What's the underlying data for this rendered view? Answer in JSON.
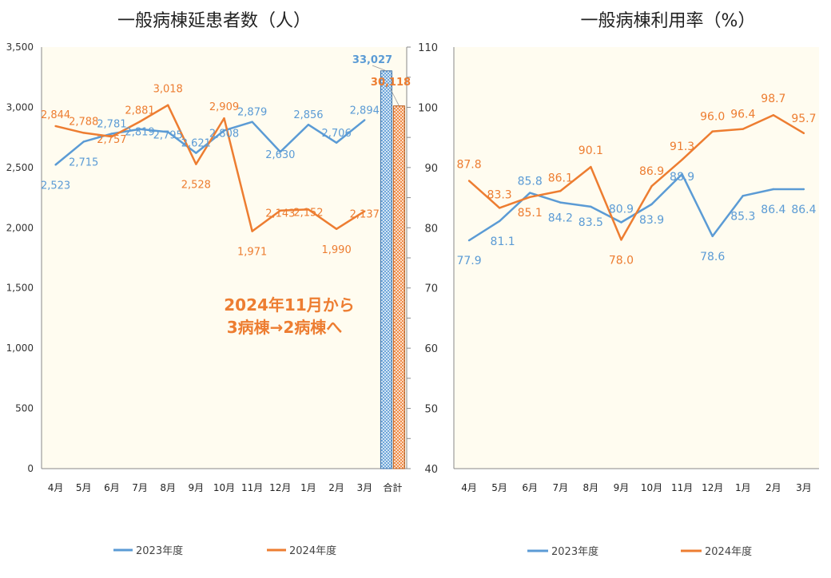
{
  "chart_data": [
    {
      "type": "line+bar",
      "title": "一般病棟延患者数（人）",
      "categories": [
        "4月",
        "5月",
        "6月",
        "7月",
        "8月",
        "9月",
        "10月",
        "11月",
        "12月",
        "1月",
        "2月",
        "3月"
      ],
      "total_category": "合計",
      "series": [
        {
          "name": "2023年度",
          "color": "#5b9bd5",
          "values": [
            2523,
            2715,
            2781,
            2819,
            2795,
            2621,
            2808,
            2879,
            2630,
            2856,
            2706,
            2894
          ],
          "labels": [
            "2,523",
            "2,715",
            "2,781",
            "2,819",
            "2,795",
            "2,621",
            "2,808",
            "2,879",
            "2,630",
            "2,856",
            "2,706",
            "2,894"
          ],
          "total": 33027,
          "total_label": "33,027"
        },
        {
          "name": "2024年度",
          "color": "#ed7d31",
          "values": [
            2844,
            2788,
            2757,
            2881,
            3018,
            2528,
            2909,
            1971,
            2143,
            2152,
            1990,
            2137
          ],
          "labels": [
            "2,844",
            "2,788",
            "2,757",
            "2,881",
            "3,018",
            "2,528",
            "2,909",
            "1,971",
            "2,143",
            "2,152",
            "1,990",
            "2,137"
          ],
          "total": 30118,
          "total_label": "30,118"
        }
      ],
      "y_left": {
        "min": 0,
        "max": 3500,
        "step": 500,
        "ticks": [
          "0",
          "500",
          "1,000",
          "1,500",
          "2,000",
          "2,500",
          "3,000",
          "3,500"
        ]
      },
      "y_right": {
        "min": 0,
        "max": 35000,
        "step": 2500,
        "tick_labels": [
          "",
          "",
          "",
          "",
          "",
          "",
          "",
          "",
          "",
          "",
          "",
          "",
          "",
          "",
          ""
        ]
      },
      "annotation": {
        "line1": "2024年11月から",
        "line2": "3病棟→2病棟へ",
        "color": "#ed7d31"
      },
      "legend": [
        "2023年度",
        "2024年度"
      ],
      "plot_bg": "#fffcf0"
    },
    {
      "type": "line",
      "title": "一般病棟利用率（%）",
      "categories": [
        "4月",
        "5月",
        "6月",
        "7月",
        "8月",
        "9月",
        "10月",
        "11月",
        "12月",
        "1月",
        "2月",
        "3月"
      ],
      "series": [
        {
          "name": "2023年度",
          "color": "#5b9bd5",
          "values": [
            77.9,
            81.1,
            85.8,
            84.2,
            83.5,
            80.9,
            83.9,
            88.9,
            78.6,
            85.3,
            86.4,
            86.4
          ],
          "labels": [
            "77.9",
            "81.1",
            "85.8",
            "84.2",
            "83.5",
            "80.9",
            "83.9",
            "88.9",
            "78.6",
            "85.3",
            "86.4",
            "86.4"
          ]
        },
        {
          "name": "2024年度",
          "color": "#ed7d31",
          "values": [
            87.8,
            83.3,
            85.1,
            86.1,
            90.1,
            78.0,
            86.9,
            91.3,
            96.0,
            96.4,
            98.7,
            95.7
          ],
          "labels": [
            "87.8",
            "83.3",
            "85.1",
            "86.1",
            "90.1",
            "78.0",
            "86.9",
            "91.3",
            "96.0",
            "96.4",
            "98.7",
            "95.7"
          ]
        }
      ],
      "y": {
        "min": 40,
        "max": 110,
        "step": 10,
        "ticks": [
          "40",
          "50",
          "60",
          "70",
          "80",
          "90",
          "100",
          "110"
        ]
      },
      "legend": [
        "2023年度",
        "2024年度"
      ],
      "plot_bg": "#fffcf0"
    }
  ]
}
